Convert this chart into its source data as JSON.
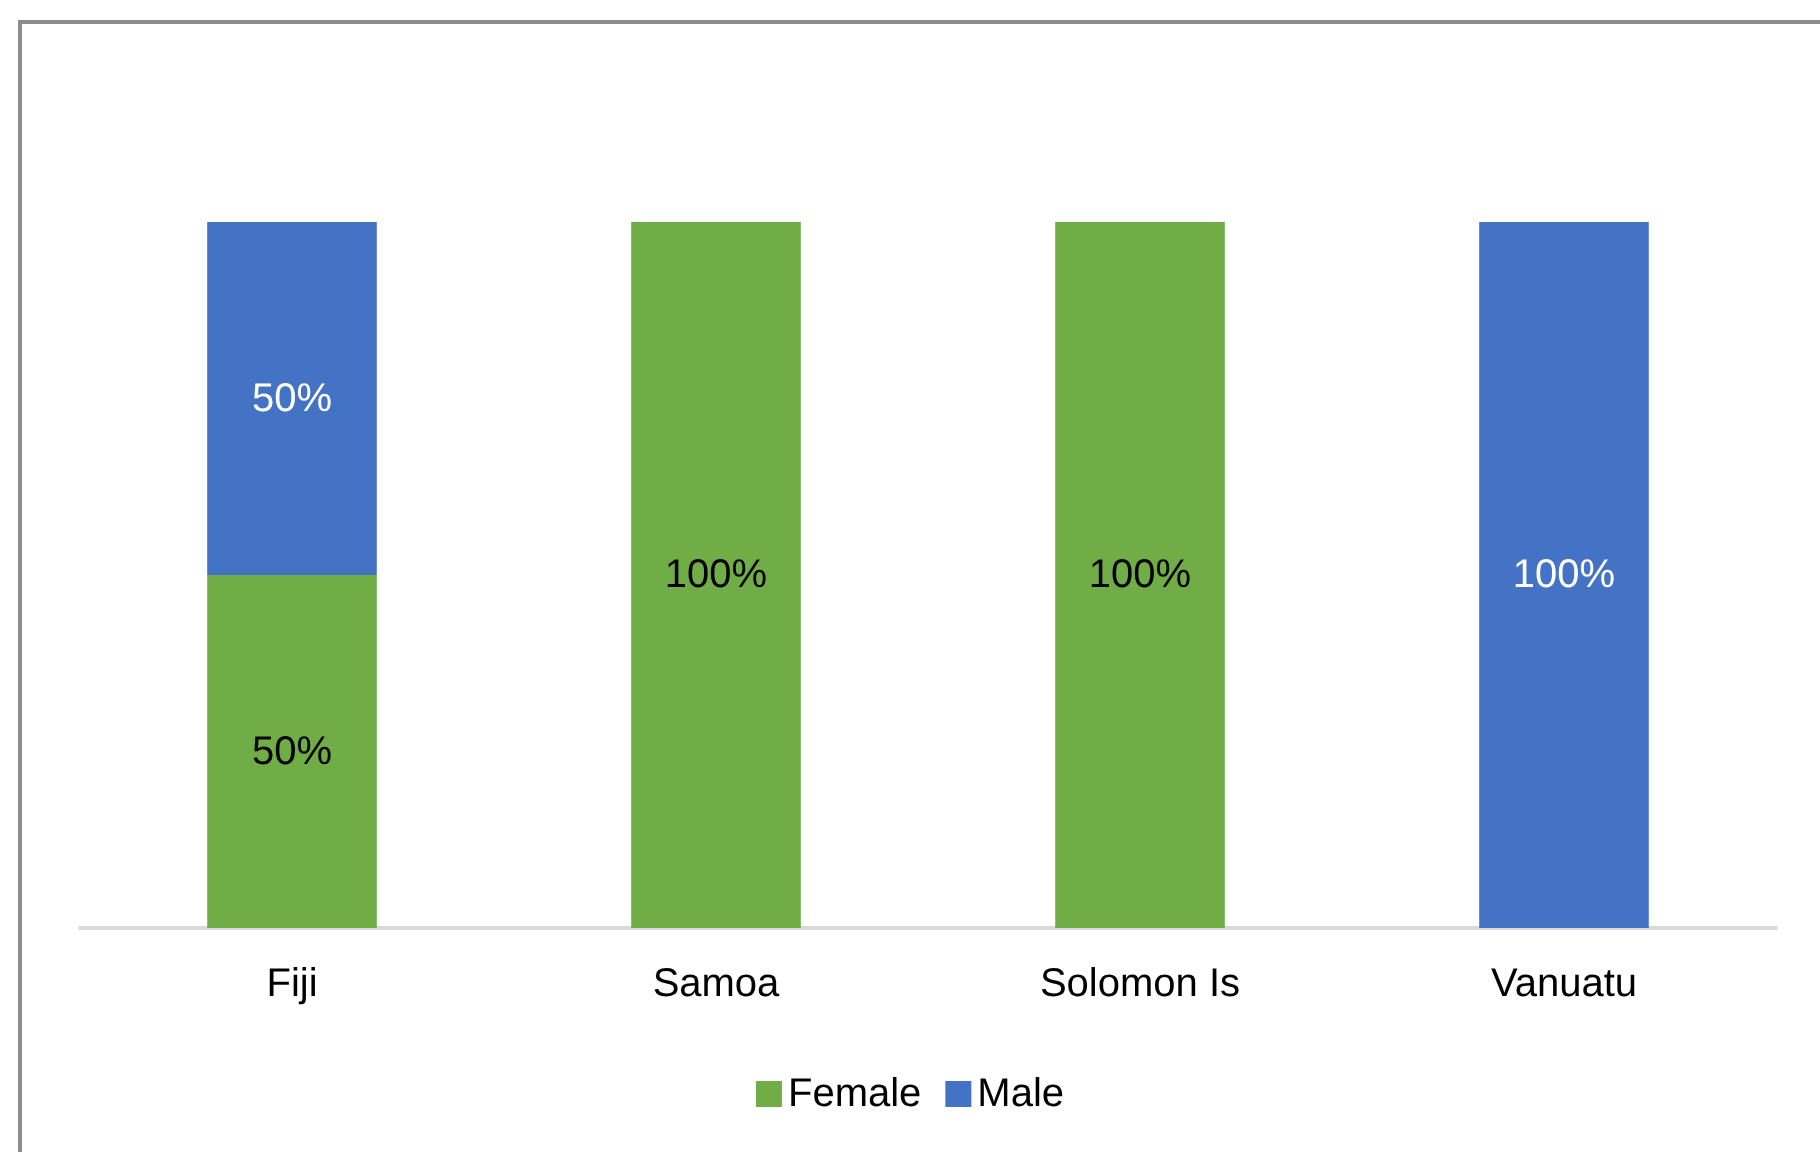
{
  "chart_data": {
    "type": "bar",
    "stacked": true,
    "categories": [
      "Fiji",
      "Samoa",
      "Solomon Is",
      "Vanuatu"
    ],
    "series": [
      {
        "name": "Female",
        "color": "#70ad47",
        "values": [
          50,
          100,
          100,
          null
        ],
        "value_labels": [
          "50%",
          "100%",
          "100%",
          null
        ]
      },
      {
        "name": "Male",
        "color": "#4472c4",
        "values": [
          50,
          null,
          null,
          100
        ],
        "value_labels": [
          "50%",
          null,
          null,
          "100%"
        ]
      }
    ],
    "ylim": [
      0,
      100
    ],
    "tick_labels": "x",
    "grid": false,
    "legend": "bottom"
  }
}
